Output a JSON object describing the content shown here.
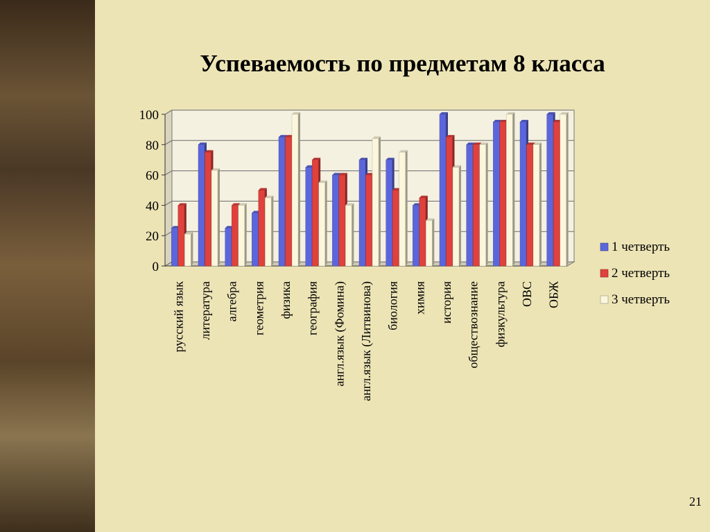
{
  "slide": {
    "title": "Успеваемость по предметам 8 класса",
    "page_number": "21"
  },
  "chart_data": {
    "type": "bar",
    "title": "Успеваемость по предметам 8 класса",
    "xlabel": "",
    "ylabel": "",
    "ylim": [
      0,
      100
    ],
    "yticks": [
      0,
      20,
      40,
      60,
      80,
      100
    ],
    "grid": true,
    "legend_position": "right",
    "categories": [
      "русский язык",
      "литература",
      "алгебра",
      "геометрия",
      "физика",
      "география",
      "англ.язык (Фомина)",
      "англ.язык (Литвинова)",
      "биология",
      "химия",
      "история",
      "обществознание",
      "физкультура",
      "ОВС",
      "ОБЖ"
    ],
    "series": [
      {
        "name": "1 четверть",
        "color": "#5c66dc",
        "values": [
          25,
          80,
          25,
          35,
          85,
          65,
          60,
          70,
          70,
          40,
          100,
          80,
          95,
          95,
          100
        ]
      },
      {
        "name": "2 четверть",
        "color": "#e0413c",
        "values": [
          40,
          75,
          40,
          50,
          85,
          70,
          60,
          60,
          50,
          45,
          85,
          80,
          95,
          80,
          95
        ]
      },
      {
        "name": "3 четверть",
        "color": "#fbf6dc",
        "values": [
          21,
          63,
          40,
          45,
          100,
          55,
          40,
          84,
          75,
          30,
          65,
          80,
          100,
          80,
          100
        ]
      }
    ]
  }
}
